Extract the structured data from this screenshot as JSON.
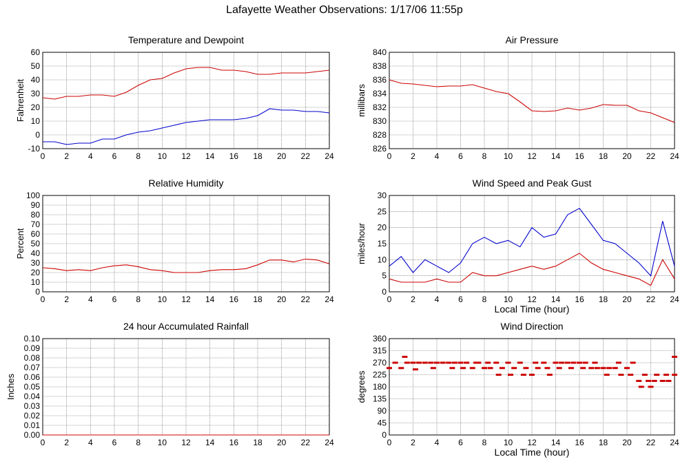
{
  "title": "Lafayette Weather Observations: 1/17/06 11:55p",
  "colors": {
    "red": "#cc0000",
    "blue": "#0000cc",
    "grid": "#555555"
  },
  "chart_data": [
    {
      "id": "temp",
      "type": "line",
      "title": "Temperature and Dewpoint",
      "ylabel": "Fahrenheit",
      "xlabel": "",
      "xlim": [
        0,
        24
      ],
      "ylim": [
        -10,
        60
      ],
      "xticks": [
        0,
        2,
        4,
        6,
        8,
        10,
        12,
        14,
        16,
        18,
        20,
        22,
        24
      ],
      "yticks": [
        -10,
        0,
        10,
        20,
        30,
        40,
        50,
        60
      ],
      "grid": true,
      "series": [
        {
          "color": "#cc0000",
          "x": [
            0,
            1,
            2,
            3,
            4,
            5,
            6,
            7,
            8,
            9,
            10,
            11,
            12,
            13,
            14,
            15,
            16,
            17,
            18,
            19,
            20,
            21,
            22,
            23,
            24
          ],
          "y": [
            27,
            26,
            28,
            28,
            29,
            29,
            28,
            31,
            36,
            40,
            41,
            45,
            48,
            49,
            49,
            47,
            47,
            46,
            44,
            44,
            45,
            45,
            45,
            46,
            47
          ]
        },
        {
          "color": "#0000cc",
          "x": [
            0,
            1,
            2,
            3,
            4,
            5,
            6,
            7,
            8,
            9,
            10,
            11,
            12,
            13,
            14,
            15,
            16,
            17,
            18,
            19,
            20,
            21,
            22,
            23,
            24
          ],
          "y": [
            -5,
            -5,
            -7,
            -6,
            -6,
            -3,
            -3,
            0,
            2,
            3,
            5,
            7,
            9,
            10,
            11,
            11,
            11,
            12,
            14,
            19,
            18,
            18,
            17,
            17,
            16
          ]
        }
      ]
    },
    {
      "id": "pressure",
      "type": "line",
      "title": "Air Pressure",
      "ylabel": "millibars",
      "xlabel": "",
      "xlim": [
        0,
        24
      ],
      "ylim": [
        826,
        840
      ],
      "xticks": [
        0,
        2,
        4,
        6,
        8,
        10,
        12,
        14,
        16,
        18,
        20,
        22,
        24
      ],
      "yticks": [
        826,
        828,
        830,
        832,
        834,
        836,
        838,
        840
      ],
      "grid": true,
      "series": [
        {
          "color": "#cc0000",
          "x": [
            0,
            1,
            2,
            3,
            4,
            5,
            6,
            7,
            8,
            9,
            10,
            11,
            12,
            13,
            14,
            15,
            16,
            17,
            18,
            19,
            20,
            21,
            22,
            23,
            24
          ],
          "y": [
            836.0,
            835.5,
            835.4,
            835.2,
            835.0,
            835.1,
            835.1,
            835.3,
            834.8,
            834.3,
            834.0,
            832.8,
            831.5,
            831.4,
            831.5,
            831.9,
            831.6,
            831.9,
            832.4,
            832.3,
            832.3,
            831.5,
            831.2,
            830.5,
            829.8
          ]
        }
      ]
    },
    {
      "id": "humidity",
      "type": "line",
      "title": "Relative Humidity",
      "ylabel": "Percent",
      "xlabel": "",
      "xlim": [
        0,
        24
      ],
      "ylim": [
        0,
        100
      ],
      "xticks": [
        0,
        2,
        4,
        6,
        8,
        10,
        12,
        14,
        16,
        18,
        20,
        22,
        24
      ],
      "yticks": [
        0,
        10,
        20,
        30,
        40,
        50,
        60,
        70,
        80,
        90,
        100
      ],
      "grid": true,
      "series": [
        {
          "color": "#cc0000",
          "x": [
            0,
            1,
            2,
            3,
            4,
            5,
            6,
            7,
            8,
            9,
            10,
            11,
            12,
            13,
            14,
            15,
            16,
            17,
            18,
            19,
            20,
            21,
            22,
            23,
            24
          ],
          "y": [
            25,
            24,
            22,
            23,
            22,
            25,
            27,
            28,
            26,
            23,
            22,
            20,
            20,
            20,
            22,
            23,
            23,
            24,
            28,
            33,
            33,
            31,
            34,
            33,
            29
          ]
        }
      ]
    },
    {
      "id": "wind",
      "type": "line",
      "title": "Wind Speed and Peak Gust",
      "ylabel": "miles/hour",
      "xlabel": "Local Time (hour)",
      "xlim": [
        0,
        24
      ],
      "ylim": [
        0,
        30
      ],
      "xticks": [
        0,
        2,
        4,
        6,
        8,
        10,
        12,
        14,
        16,
        18,
        20,
        22,
        24
      ],
      "yticks": [
        0,
        5,
        10,
        15,
        20,
        25,
        30
      ],
      "grid": true,
      "series": [
        {
          "color": "#0000cc",
          "x": [
            0,
            1,
            2,
            3,
            4,
            5,
            6,
            7,
            8,
            9,
            10,
            11,
            12,
            13,
            14,
            15,
            16,
            17,
            18,
            19,
            20,
            21,
            22,
            23,
            24
          ],
          "y": [
            8,
            11,
            6,
            10,
            8,
            6,
            9,
            15,
            17,
            15,
            16,
            14,
            20,
            17,
            18,
            24,
            26,
            21,
            16,
            15,
            12,
            9,
            5,
            22,
            8
          ]
        },
        {
          "color": "#cc0000",
          "x": [
            0,
            1,
            2,
            3,
            4,
            5,
            6,
            7,
            8,
            9,
            10,
            11,
            12,
            13,
            14,
            15,
            16,
            17,
            18,
            19,
            20,
            21,
            22,
            23,
            24
          ],
          "y": [
            4,
            3,
            3,
            3,
            4,
            3,
            3,
            6,
            5,
            5,
            6,
            7,
            8,
            7,
            8,
            10,
            12,
            9,
            7,
            6,
            5,
            4,
            2,
            10,
            4
          ]
        }
      ]
    },
    {
      "id": "rain",
      "type": "line",
      "title": "24 hour Accumulated Rainfall",
      "ylabel": "Inches",
      "xlabel": "",
      "xlim": [
        0,
        24
      ],
      "ylim": [
        0,
        0.1
      ],
      "xticks": [
        0,
        2,
        4,
        6,
        8,
        10,
        12,
        14,
        16,
        18,
        20,
        22,
        24
      ],
      "yticks": [
        "0.00",
        "0.01",
        "0.02",
        "0.03",
        "0.04",
        "0.05",
        "0.06",
        "0.07",
        "0.08",
        "0.09",
        "0.10"
      ],
      "grid": true,
      "series": [
        {
          "color": "#cc0000",
          "x": [
            0,
            24
          ],
          "y": [
            0,
            0
          ]
        }
      ]
    },
    {
      "id": "direction",
      "type": "scatter",
      "title": "Wind Direction",
      "ylabel": "degrees",
      "xlabel": "Local Time (hour)",
      "xlim": [
        0,
        24
      ],
      "ylim": [
        0,
        360
      ],
      "xticks": [
        0,
        2,
        4,
        6,
        8,
        10,
        12,
        14,
        16,
        18,
        20,
        22,
        24
      ],
      "yticks": [
        0,
        45,
        90,
        135,
        180,
        225,
        270,
        315,
        360
      ],
      "grid": true,
      "series": [
        {
          "color": "#cc0000",
          "x": [
            0,
            0.5,
            1,
            1.3,
            1.5,
            2,
            2.2,
            2.5,
            3,
            3.5,
            3.7,
            4,
            4.5,
            5,
            5.3,
            5.5,
            6,
            6.2,
            6.5,
            7,
            7.3,
            7.5,
            8,
            8.3,
            8.5,
            9,
            9.2,
            9.5,
            10,
            10.2,
            10.5,
            11,
            11.3,
            11.5,
            12,
            12.3,
            12.5,
            13,
            13.3,
            13.5,
            14,
            14.3,
            14.5,
            15,
            15.3,
            15.5,
            16,
            16.3,
            16.5,
            17,
            17.3,
            17.5,
            18,
            18.3,
            18.5,
            19,
            19.3,
            19.5,
            20,
            20.3,
            20.5,
            21,
            21.2,
            21.5,
            21.8,
            22,
            22.3,
            22.5,
            23,
            23.3,
            23.5,
            24,
            24
          ],
          "y": [
            250,
            270,
            250,
            292,
            270,
            270,
            245,
            270,
            270,
            270,
            250,
            270,
            270,
            270,
            250,
            270,
            270,
            250,
            270,
            250,
            270,
            270,
            250,
            270,
            250,
            270,
            225,
            250,
            270,
            225,
            250,
            270,
            225,
            250,
            225,
            270,
            250,
            270,
            250,
            225,
            270,
            250,
            270,
            270,
            250,
            270,
            270,
            250,
            270,
            250,
            270,
            250,
            250,
            225,
            250,
            250,
            270,
            225,
            250,
            225,
            270,
            202,
            180,
            225,
            202,
            180,
            202,
            225,
            202,
            225,
            202,
            225,
            292
          ]
        }
      ]
    }
  ]
}
